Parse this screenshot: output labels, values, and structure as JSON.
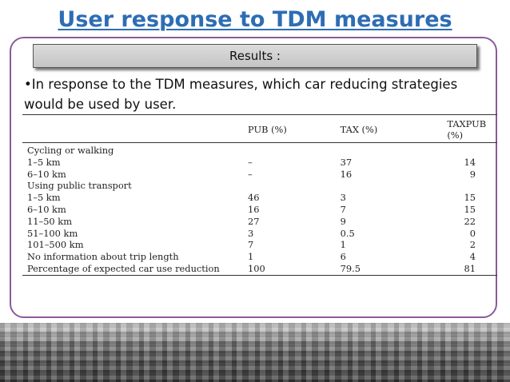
{
  "title": "User response to TDM measures",
  "results_label": "Results :",
  "bullet_text": "•In response to the TDM measures, which car reducing strategies would be used by user.",
  "table": {
    "headers": [
      "",
      "PUB (%)",
      "TAX (%)",
      "TAXPUB (%)"
    ],
    "rows": [
      [
        "Cycling or walking",
        "",
        "",
        ""
      ],
      [
        "1–5 km",
        "–",
        "37",
        "14"
      ],
      [
        "6–10 km",
        "–",
        "16",
        "9"
      ],
      [
        "Using public transport",
        "",
        "",
        ""
      ],
      [
        "1–5 km",
        "46",
        "3",
        "15"
      ],
      [
        "6–10 km",
        "16",
        "7",
        "15"
      ],
      [
        "11–50 km",
        "27",
        "9",
        "22"
      ],
      [
        "51–100 km",
        "3",
        "0.5",
        "0"
      ],
      [
        "101–500 km",
        "7",
        "1",
        "2"
      ],
      [
        "No information about trip length",
        "1",
        "6",
        "4"
      ],
      [
        "Percentage of expected car use reduction",
        "100",
        "79.5",
        "81"
      ]
    ]
  },
  "colors": {
    "title": "#2e6db4",
    "frame_border": "#8b5a9c",
    "results_box": "#d0d0d0"
  },
  "footer_image": "parking-lot-cars-photo"
}
